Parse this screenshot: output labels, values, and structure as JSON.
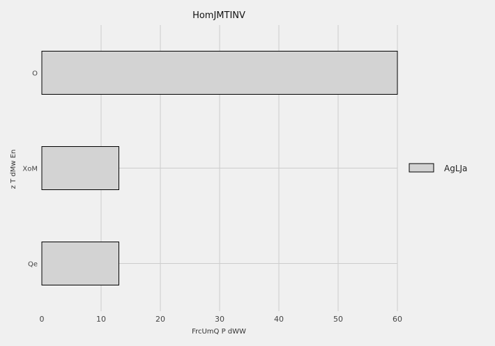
{
  "chart_data": {
    "type": "bar",
    "orientation": "horizontal",
    "title": "HomJMTINV",
    "xlabel": "FrcUmQ P dWW",
    "ylabel": "z  T dMw En",
    "categories": [
      "O",
      "XoM",
      "Qe"
    ],
    "series": [
      {
        "name": "AgLJa",
        "values": [
          60,
          13,
          13
        ]
      }
    ],
    "xlim": [
      0,
      60
    ],
    "xticks": [
      0,
      10,
      20,
      30,
      40,
      50,
      60
    ],
    "grid": true,
    "legend_position": "right",
    "colors": {
      "bar_fill": "#d3d3d3",
      "bar_stroke": "#000000",
      "grid": "#cccccc",
      "background": "#f0f0f0"
    }
  }
}
